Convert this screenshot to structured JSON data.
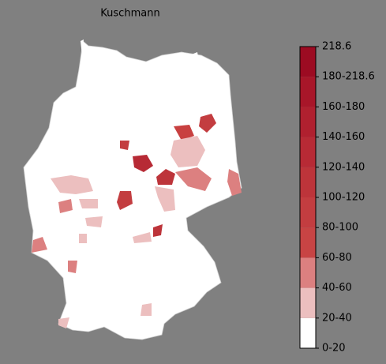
{
  "map": {
    "title": "Kuschmann",
    "colorbar": {
      "ticks": [
        {
          "value": 0,
          "label": "0-20"
        },
        {
          "value": 20,
          "label": "20-40"
        },
        {
          "value": 40,
          "label": "40-60"
        },
        {
          "value": 60,
          "label": "60-80"
        },
        {
          "value": 80,
          "label": "80-100"
        },
        {
          "value": 100,
          "label": "100-120"
        },
        {
          "value": 120,
          "label": "120-140"
        },
        {
          "value": 140,
          "label": "140-160"
        },
        {
          "value": 160,
          "label": "160-180"
        },
        {
          "value": 180,
          "label": "180-218.6"
        },
        218.6
      ],
      "colors": [
        "#ffffff",
        "#ecbfbf",
        "#dc8080",
        "#c84444",
        "#c33d40",
        "#bd343a",
        "#b72a35",
        "#b0202f",
        "#a81629",
        "#9c0b22"
      ]
    }
  }
}
